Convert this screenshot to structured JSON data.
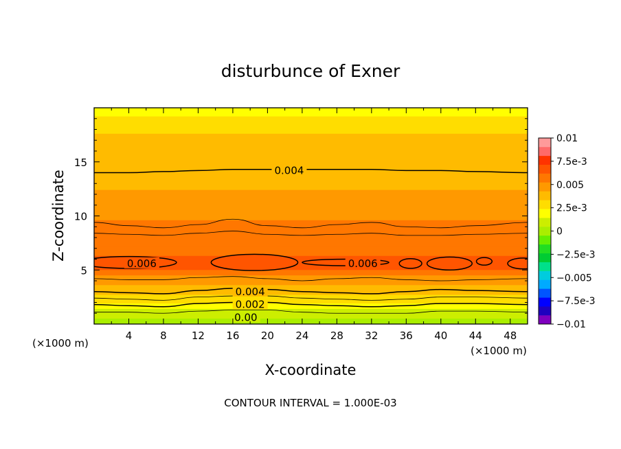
{
  "chart_data": {
    "type": "heatmap",
    "title": "disturbunce of Exner",
    "xlabel": "X-coordinate",
    "ylabel": "Z-coordinate",
    "x_unit": "(×1000 m)",
    "xlim": [
      0,
      50
    ],
    "ylim": [
      0,
      20
    ],
    "x_ticks": [
      4,
      8,
      12,
      16,
      20,
      24,
      28,
      32,
      36,
      40,
      44,
      48
    ],
    "y_ticks": [
      5,
      10,
      15
    ],
    "footer": "CONTOUR INTERVAL = 1.000E-03",
    "colorbar": {
      "min": -0.01,
      "max": 0.01,
      "labels": [
        {
          "value": 0.01,
          "text": "0.01"
        },
        {
          "value": 0.0075,
          "text": "7.5e-3"
        },
        {
          "value": 0.005,
          "text": "0.005"
        },
        {
          "value": 0.0025,
          "text": "2.5e-3"
        },
        {
          "value": 0,
          "text": "0"
        },
        {
          "value": -0.0025,
          "text": "−2.5e-3"
        },
        {
          "value": -0.005,
          "text": "−0.005"
        },
        {
          "value": -0.0075,
          "text": "−7.5e-3"
        },
        {
          "value": -0.01,
          "text": "−0.01"
        }
      ],
      "colors": [
        "#7f00bf",
        "#1f00bf",
        "#0000ff",
        "#0055ff",
        "#00aaff",
        "#00ccdd",
        "#00e08a",
        "#00cc33",
        "#22dd22",
        "#66ee00",
        "#aaee00",
        "#ccee00",
        "#ffff00",
        "#ffdd00",
        "#ffbb00",
        "#ff9900",
        "#ff7700",
        "#ff5500",
        "#ff3300",
        "#ff6a6a",
        "#ff9a9a"
      ]
    },
    "contour_labels": [
      {
        "text": "0.004",
        "x": 22.5,
        "z": 14.2
      },
      {
        "text": "0.006",
        "x": 5.5,
        "z": 5.6
      },
      {
        "text": "0.006",
        "x": 31,
        "z": 5.6
      },
      {
        "text": "0.004",
        "x": 18,
        "z": 3.0
      },
      {
        "text": "0.002",
        "x": 18,
        "z": 1.8
      },
      {
        "text": "0.00",
        "x": 17.5,
        "z": 0.6
      }
    ],
    "bands": [
      {
        "z0": 19.2,
        "z1": 20.0,
        "value": 0.0022
      },
      {
        "z0": 17.6,
        "z1": 19.2,
        "value": 0.003
      },
      {
        "z0": 15.2,
        "z1": 17.6,
        "value": 0.0034
      },
      {
        "z0": 13.8,
        "z1": 15.2,
        "value": 0.0038
      },
      {
        "z0": 12.4,
        "z1": 13.8,
        "value": 0.0042
      },
      {
        "z0": 11.0,
        "z1": 12.4,
        "value": 0.0046
      },
      {
        "z0": 9.6,
        "z1": 11.0,
        "value": 0.005
      },
      {
        "z0": 8.4,
        "z1": 9.6,
        "value": 0.0054
      },
      {
        "z0": 7.2,
        "z1": 8.4,
        "value": 0.0056
      },
      {
        "z0": 6.3,
        "z1": 7.2,
        "value": 0.0059
      },
      {
        "z0": 5.0,
        "z1": 6.3,
        "value": 0.0062
      },
      {
        "z0": 4.5,
        "z1": 5.0,
        "value": 0.0056
      },
      {
        "z0": 4.0,
        "z1": 4.5,
        "value": 0.005
      },
      {
        "z0": 3.6,
        "z1": 4.0,
        "value": 0.0046
      },
      {
        "z0": 3.1,
        "z1": 3.6,
        "value": 0.0042
      },
      {
        "z0": 2.7,
        "z1": 3.1,
        "value": 0.0036
      },
      {
        "z0": 2.3,
        "z1": 2.7,
        "value": 0.003
      },
      {
        "z0": 1.9,
        "z1": 2.3,
        "value": 0.0025
      },
      {
        "z0": 1.4,
        "z1": 1.9,
        "value": 0.0018
      },
      {
        "z0": 1.0,
        "z1": 1.4,
        "value": 0.0012
      },
      {
        "z0": 0.5,
        "z1": 1.0,
        "value": 0.0006
      },
      {
        "z0": 0.0,
        "z1": 0.5,
        "value": 0.0001
      }
    ],
    "contours": [
      {
        "value": 0.004,
        "z": [
          14.0,
          14.0,
          14.1,
          14.2,
          14.3,
          14.3,
          14.3,
          14.3,
          14.3,
          14.2,
          14.2,
          14.1,
          14.0
        ]
      },
      {
        "value": 0.005,
        "z": [
          9.4,
          9.1,
          8.9,
          9.2,
          9.7,
          9.1,
          8.9,
          9.2,
          9.4,
          9.0,
          8.9,
          9.1,
          9.4
        ]
      },
      {
        "value": 0.0055,
        "z": [
          8.4,
          8.3,
          8.2,
          8.4,
          8.6,
          8.3,
          8.2,
          8.3,
          8.4,
          8.2,
          8.2,
          8.3,
          8.4
        ]
      },
      {
        "value": 0.0045,
        "z": [
          4.2,
          4.1,
          4.1,
          4.3,
          4.4,
          4.2,
          4.0,
          4.2,
          4.3,
          4.1,
          4.0,
          4.1,
          4.2
        ]
      },
      {
        "value": 0.004,
        "z": [
          3.0,
          2.9,
          2.8,
          3.1,
          3.3,
          3.2,
          3.0,
          2.9,
          2.8,
          3.0,
          3.2,
          3.1,
          3.0
        ]
      },
      {
        "value": 0.003,
        "z": [
          2.4,
          2.3,
          2.2,
          2.5,
          2.6,
          2.6,
          2.4,
          2.3,
          2.2,
          2.3,
          2.5,
          2.5,
          2.4
        ]
      },
      {
        "value": 0.002,
        "z": [
          1.8,
          1.7,
          1.6,
          1.9,
          2.0,
          2.0,
          1.8,
          1.7,
          1.6,
          1.7,
          1.9,
          1.9,
          1.8
        ]
      },
      {
        "value": 0.001,
        "z": [
          1.1,
          1.1,
          1.0,
          1.2,
          1.3,
          1.3,
          1.1,
          1.0,
          1.0,
          1.0,
          1.2,
          1.2,
          1.1
        ]
      }
    ],
    "contour_x": [
      0,
      4,
      8,
      12,
      16,
      20,
      24,
      28,
      32,
      36,
      40,
      44,
      50
    ],
    "closed_contours": [
      {
        "value": 0.006,
        "cx": 4.0,
        "cz": 5.7,
        "rx": 5.5,
        "rz": 0.55
      },
      {
        "value": 0.006,
        "cx": 18.5,
        "cz": 5.7,
        "rx": 5.0,
        "rz": 0.75
      },
      {
        "value": 0.006,
        "cx": 29.0,
        "cz": 5.7,
        "rx": 5.0,
        "rz": 0.3
      },
      {
        "value": 0.006,
        "cx": 36.5,
        "cz": 5.6,
        "rx": 1.3,
        "rz": 0.45
      },
      {
        "value": 0.006,
        "cx": 41.0,
        "cz": 5.6,
        "rx": 2.6,
        "rz": 0.6
      },
      {
        "value": 0.006,
        "cx": 45.0,
        "cz": 5.8,
        "rx": 0.9,
        "rz": 0.35
      },
      {
        "value": 0.006,
        "cx": 49.5,
        "cz": 5.6,
        "rx": 1.8,
        "rz": 0.5
      }
    ]
  }
}
